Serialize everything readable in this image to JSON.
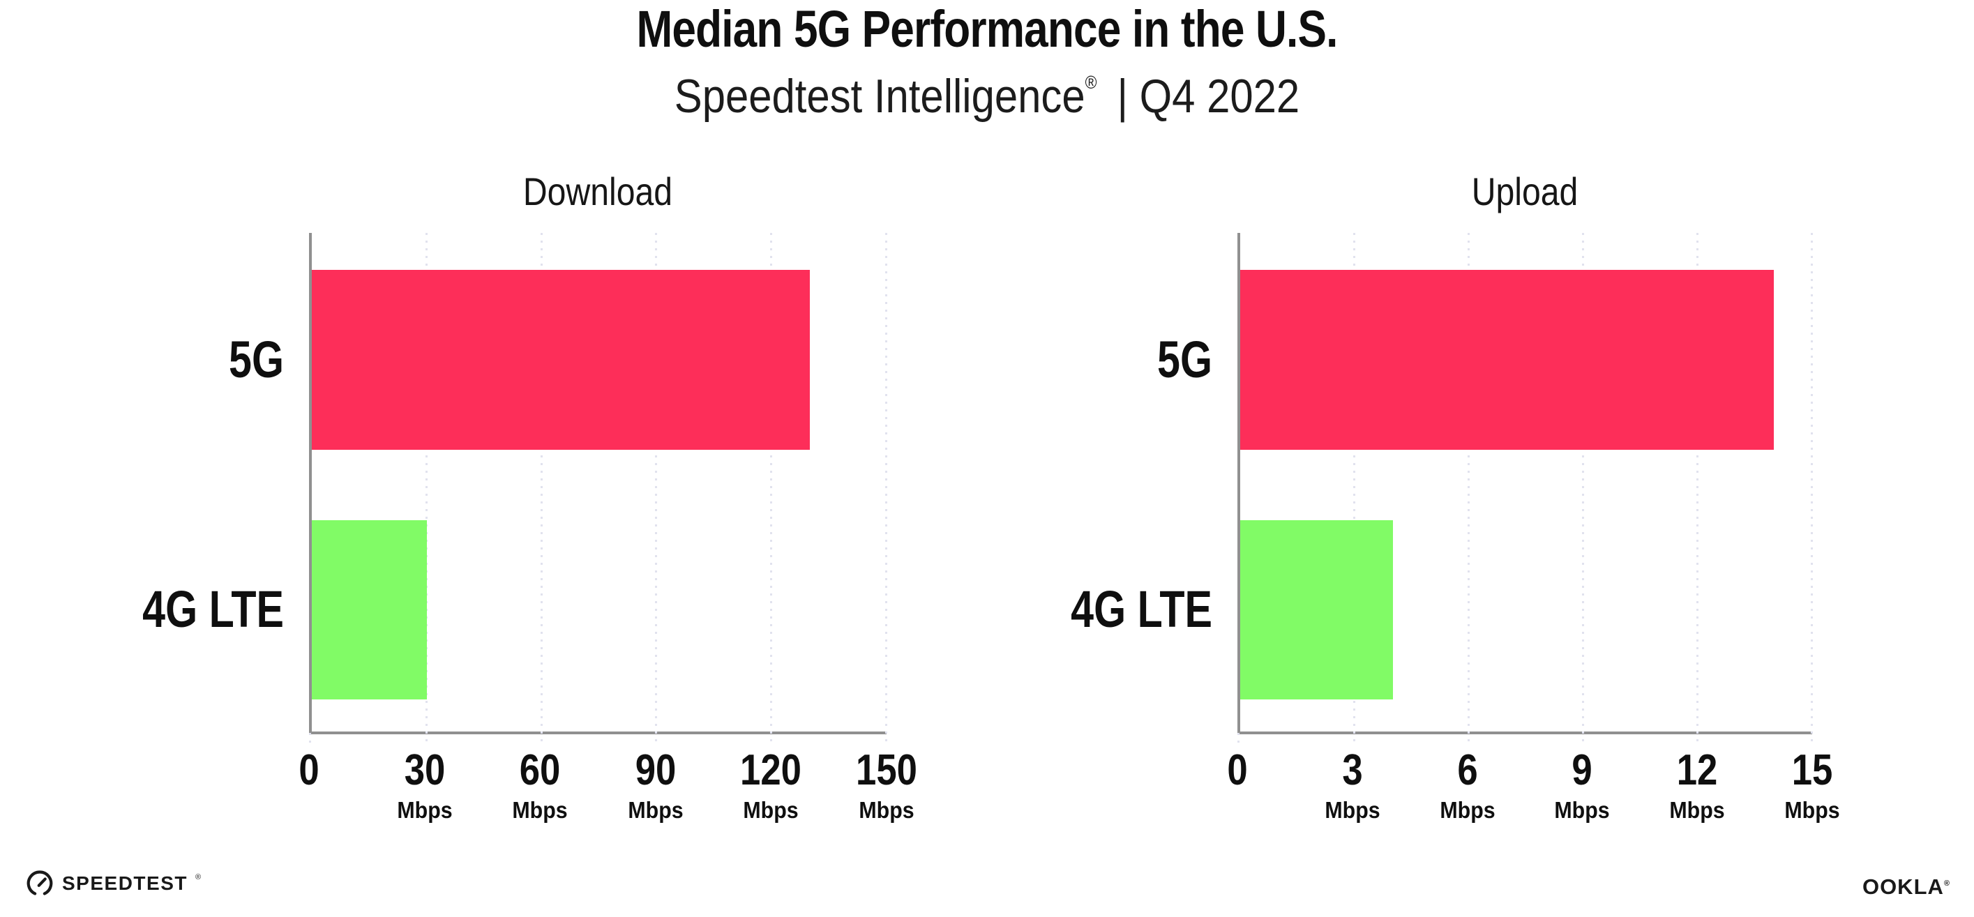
{
  "header": {
    "title": "Median 5G Performance in the U.S.",
    "subtitle_brand": "Speedtest Intelligence",
    "subtitle_reg": "®",
    "subtitle_period": "| Q4 2022"
  },
  "footer": {
    "speedtest_label": "SPEEDTEST",
    "speedtest_reg": "®",
    "ookla_label": "OOKLA",
    "ookla_reg": "®"
  },
  "colors": {
    "bar_5g": "#FD2E59",
    "bar_4g_lte": "#81FB66",
    "axis": "#909090",
    "gridline": "#E1E2EE",
    "text": "#0F0F0F"
  },
  "chart_data": [
    {
      "type": "bar",
      "orientation": "horizontal",
      "title": "Download",
      "categories": [
        "5G",
        "4G LTE"
      ],
      "values": [
        130,
        30
      ],
      "unit": "Mbps",
      "xlabel": "",
      "ylabel": "",
      "xlim": [
        0,
        150
      ],
      "xticks": [
        0,
        30,
        60,
        90,
        120,
        150
      ],
      "bar_colors": [
        "#FD2E59",
        "#81FB66"
      ],
      "grid": "vertical-dotted",
      "legend": "none"
    },
    {
      "type": "bar",
      "orientation": "horizontal",
      "title": "Upload",
      "categories": [
        "5G",
        "4G LTE"
      ],
      "values": [
        14,
        4
      ],
      "unit": "Mbps",
      "xlabel": "",
      "ylabel": "",
      "xlim": [
        0,
        15
      ],
      "xticks": [
        0,
        3,
        6,
        9,
        12,
        15
      ],
      "bar_colors": [
        "#FD2E59",
        "#81FB66"
      ],
      "grid": "vertical-dotted",
      "legend": "none"
    }
  ]
}
